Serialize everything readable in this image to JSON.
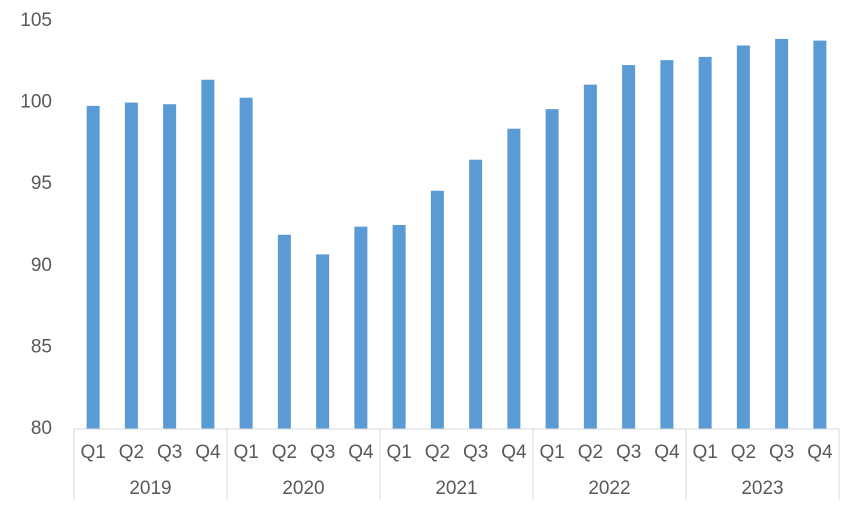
{
  "chart_data": {
    "type": "bar",
    "categories": [
      "Q1",
      "Q2",
      "Q3",
      "Q4",
      "Q1",
      "Q2",
      "Q3",
      "Q4",
      "Q1",
      "Q2",
      "Q3",
      "Q4",
      "Q1",
      "Q2",
      "Q3",
      "Q4",
      "Q1",
      "Q2",
      "Q3",
      "Q4"
    ],
    "groups": [
      "2019",
      "2020",
      "2021",
      "2022",
      "2023"
    ],
    "values": [
      99.8,
      100.0,
      99.9,
      101.4,
      100.3,
      91.9,
      90.7,
      92.4,
      92.5,
      94.6,
      96.5,
      98.4,
      99.6,
      101.1,
      102.3,
      102.6,
      102.8,
      103.5,
      103.9,
      103.8
    ],
    "color": "#5b9bd5",
    "ylim": [
      80,
      105
    ],
    "yticks": [
      80,
      85,
      90,
      95,
      100,
      105
    ],
    "grid": false
  }
}
